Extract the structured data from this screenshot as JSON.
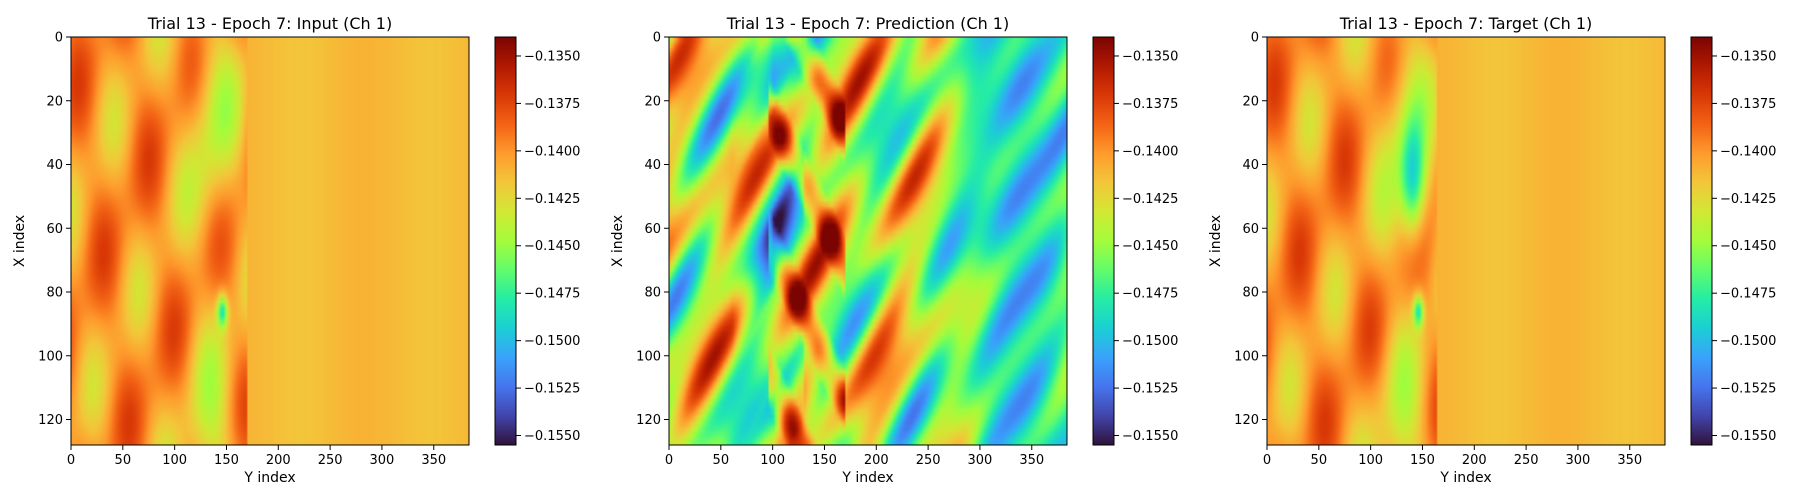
{
  "colors": {
    "turbo_stops": [
      "#30123b",
      "#4145ab",
      "#4675ed",
      "#39a2fc",
      "#1bcfd4",
      "#24eca6",
      "#61fc6c",
      "#a4fc3b",
      "#d1e834",
      "#f3c63a",
      "#fe9b2d",
      "#f36315",
      "#d93806",
      "#b11901",
      "#7a0402"
    ]
  },
  "chart_data": [
    {
      "type": "heatmap",
      "title": "Trial 13 - Epoch 7: Input (Ch 1)",
      "xlabel": "Y index",
      "ylabel": "X index",
      "xlim": [
        0,
        384
      ],
      "ylim": [
        128,
        0
      ],
      "xticks": [
        "0",
        "50",
        "100",
        "150",
        "200",
        "250",
        "300",
        "350"
      ],
      "yticks": [
        "0",
        "20",
        "40",
        "60",
        "80",
        "100",
        "120"
      ],
      "colormap": "turbo",
      "colorbar_range": [
        -0.1555,
        -0.134
      ],
      "colorbar_ticks": [
        "−0.1350",
        "−0.1375",
        "−0.1400",
        "−0.1425",
        "−0.1450",
        "−0.1475",
        "−0.1500",
        "−0.1525",
        "−0.1550"
      ]
    },
    {
      "type": "heatmap",
      "title": "Trial 13 - Epoch 7: Prediction (Ch 1)",
      "xlabel": "Y index",
      "ylabel": "X index",
      "xlim": [
        0,
        384
      ],
      "ylim": [
        128,
        0
      ],
      "xticks": [
        "0",
        "50",
        "100",
        "150",
        "200",
        "250",
        "300",
        "350"
      ],
      "yticks": [
        "0",
        "20",
        "40",
        "60",
        "80",
        "100",
        "120"
      ],
      "colormap": "turbo",
      "colorbar_range": [
        -0.1555,
        -0.134
      ],
      "colorbar_ticks": [
        "−0.1350",
        "−0.1375",
        "−0.1400",
        "−0.1425",
        "−0.1450",
        "−0.1475",
        "−0.1500",
        "−0.1525",
        "−0.1550"
      ]
    },
    {
      "type": "heatmap",
      "title": "Trial 13 - Epoch 7: Target (Ch 1)",
      "xlabel": "Y index",
      "ylabel": "X index",
      "xlim": [
        0,
        384
      ],
      "ylim": [
        128,
        0
      ],
      "xticks": [
        "0",
        "50",
        "100",
        "150",
        "200",
        "250",
        "300",
        "350"
      ],
      "yticks": [
        "0",
        "20",
        "40",
        "60",
        "80",
        "100",
        "120"
      ],
      "colormap": "turbo",
      "colorbar_range": [
        -0.1555,
        -0.134
      ],
      "colorbar_ticks": [
        "−0.1350",
        "−0.1375",
        "−0.1400",
        "−0.1425",
        "−0.1450",
        "−0.1475",
        "−0.1500",
        "−0.1525",
        "−0.1550"
      ]
    }
  ]
}
